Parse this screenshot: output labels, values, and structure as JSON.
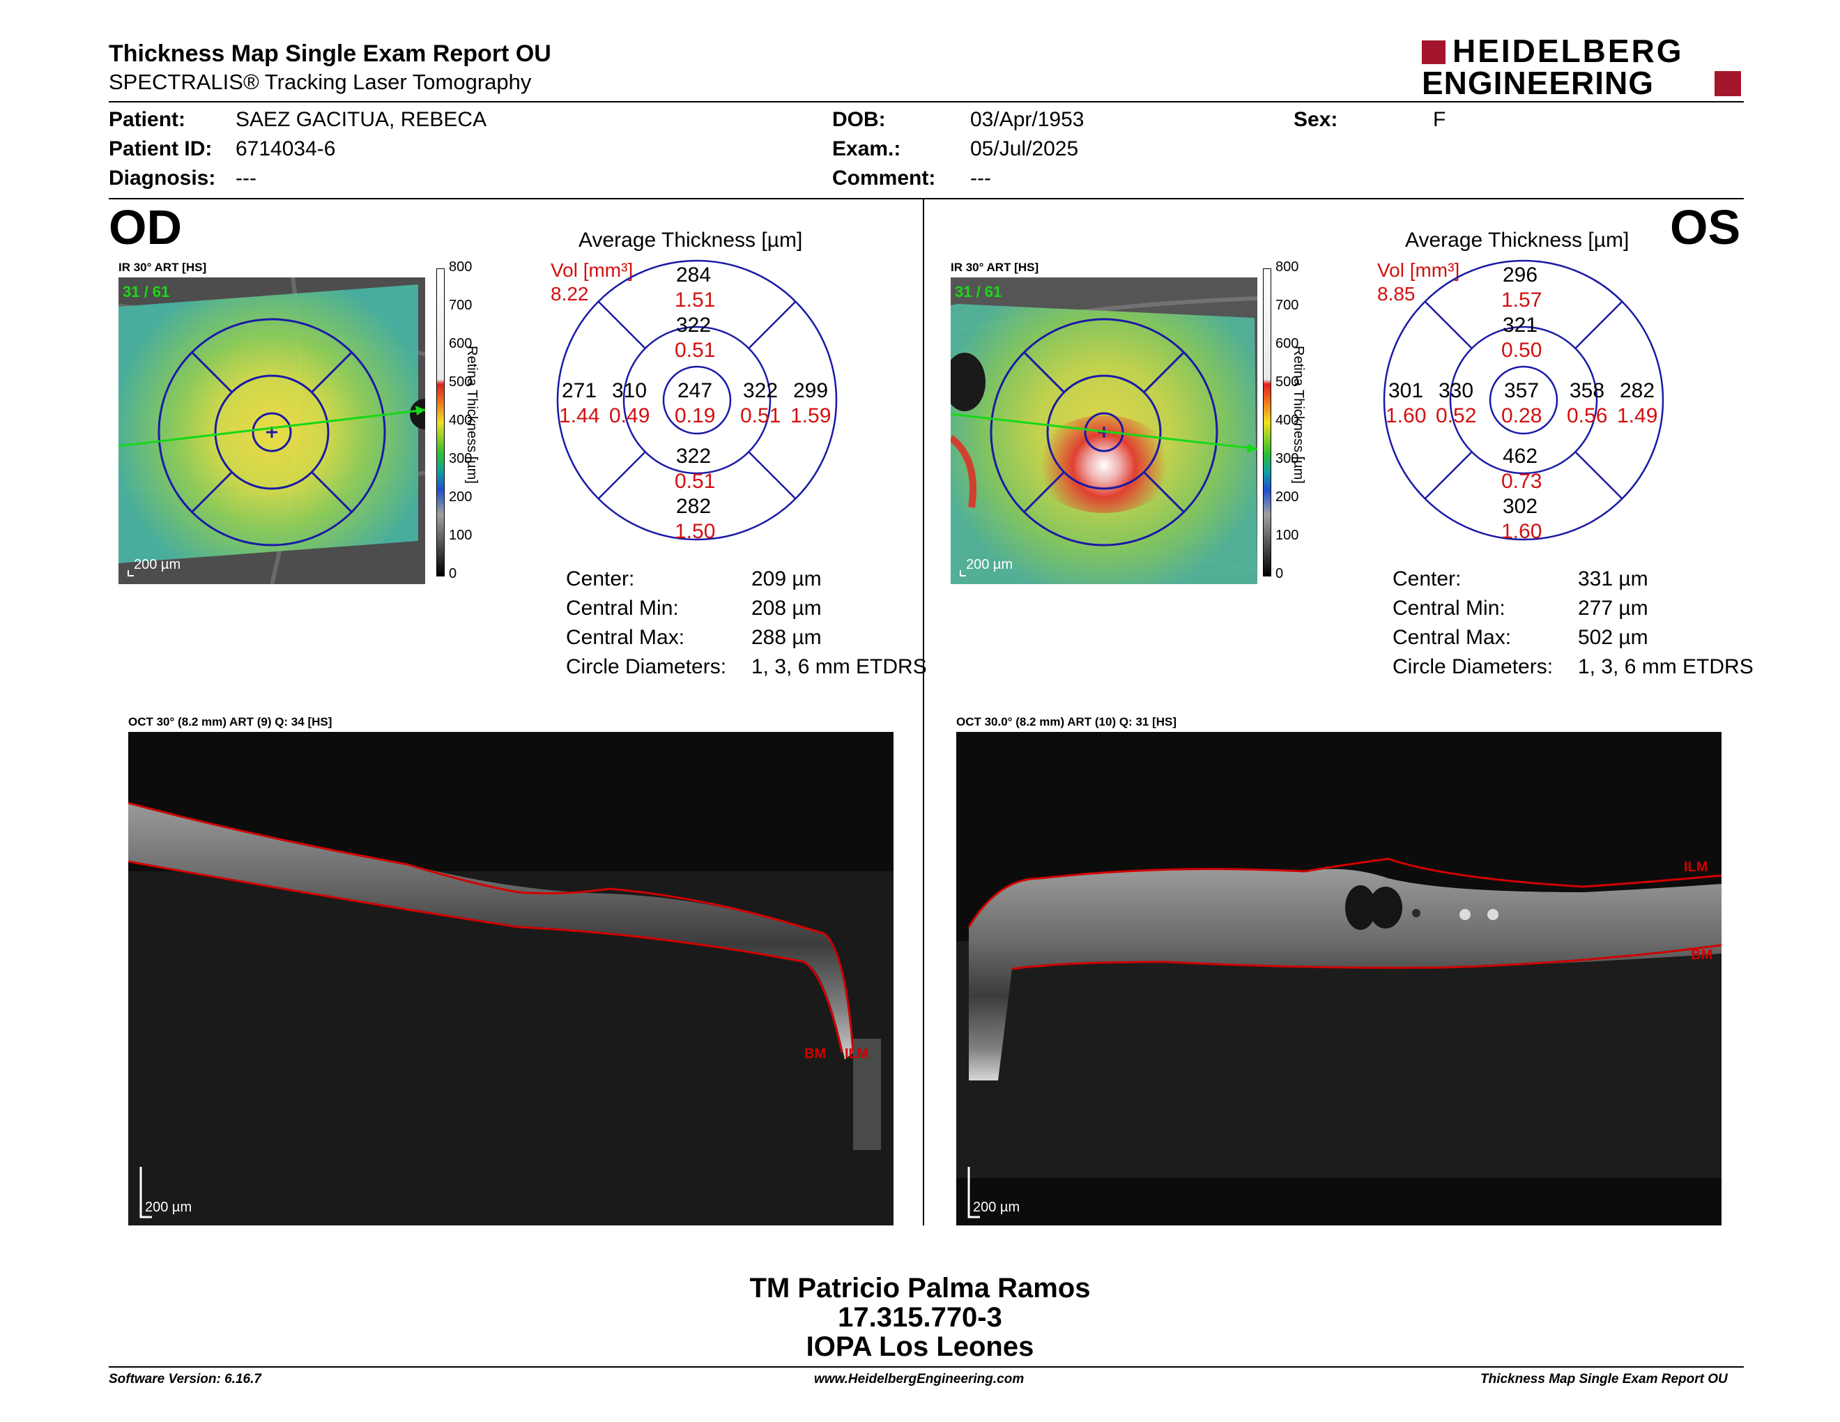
{
  "header": {
    "title": "Thickness Map Single Exam Report OU",
    "subtitle": "SPECTRALIS® Tracking Laser Tomography",
    "logo_line1": "HEIDELBERG",
    "logo_line2": "ENGINEERING"
  },
  "patient": {
    "patient_label": "Patient:",
    "patient_value": "SAEZ GACITUA, REBECA",
    "id_label": "Patient ID:",
    "id_value": "6714034-6",
    "diagnosis_label": "Diagnosis:",
    "diagnosis_value": "---",
    "dob_label": "DOB:",
    "dob_value": "03/Apr/1953",
    "exam_label": "Exam.:",
    "exam_value": "05/Jul/2025",
    "comment_label": "Comment:",
    "comment_value": "---",
    "sex_label": "Sex:",
    "sex_value": "F"
  },
  "colorbar": {
    "ticks": [
      "800",
      "700",
      "600",
      "500",
      "400",
      "300",
      "200",
      "100",
      "0"
    ],
    "label": "Retina Thickness [µm]"
  },
  "od": {
    "eye": "OD",
    "fundus_caption": "IR 30° ART [HS]",
    "frames": "31 / 61",
    "scale": "200 µm",
    "etdrs": {
      "title": "Average Thickness [µm]",
      "vol_label": "Vol [mm³]",
      "vol_value": "8.22",
      "top_outer": "284",
      "top_outer_vol": "1.51",
      "top_inner": "322",
      "top_inner_vol": "0.51",
      "center": "247",
      "center_vol": "0.19",
      "nasal_outer": "271",
      "nasal_outer_vol": "1.44",
      "nasal_inner": "310",
      "nasal_inner_vol": "0.49",
      "temporal_inner": "322",
      "temporal_inner_vol": "0.51",
      "temporal_outer": "299",
      "temporal_outer_vol": "1.59",
      "bottom_inner": "322",
      "bottom_inner_vol": "0.51",
      "bottom_outer": "282",
      "bottom_outer_vol": "1.50"
    },
    "stats": {
      "center_label": "Center:",
      "center_value": "209 µm",
      "min_label": "Central Min:",
      "min_value": "208 µm",
      "max_label": "Central Max:",
      "max_value": "288 µm",
      "diam_label": "Circle Diameters:",
      "diam_value": "1, 3, 6 mm ETDRS"
    },
    "oct_caption": "OCT 30° (8.2 mm) ART (9) Q: 34 [HS]",
    "oct_scale": "200 µm",
    "layer_labels": [
      "BM",
      "ILM"
    ]
  },
  "os": {
    "eye": "OS",
    "fundus_caption": "IR 30° ART [HS]",
    "frames": "31 / 61",
    "scale": "200 µm",
    "etdrs": {
      "title": "Average Thickness [µm]",
      "vol_label": "Vol [mm³]",
      "vol_value": "8.85",
      "top_outer": "296",
      "top_outer_vol": "1.57",
      "top_inner": "321",
      "top_inner_vol": "0.50",
      "center": "357",
      "center_vol": "0.28",
      "nasal_outer": "301",
      "nasal_outer_vol": "1.60",
      "nasal_inner": "330",
      "nasal_inner_vol": "0.52",
      "temporal_inner": "358",
      "temporal_inner_vol": "0.56",
      "temporal_outer": "282",
      "temporal_outer_vol": "1.49",
      "bottom_inner": "462",
      "bottom_inner_vol": "0.73",
      "bottom_outer": "302",
      "bottom_outer_vol": "1.60"
    },
    "stats": {
      "center_label": "Center:",
      "center_value": "331 µm",
      "min_label": "Central Min:",
      "min_value": "277 µm",
      "max_label": "Central Max:",
      "max_value": "502 µm",
      "diam_label": "Circle Diameters:",
      "diam_value": "1, 3, 6 mm ETDRS"
    },
    "oct_caption": "OCT 30.0° (8.2 mm) ART (10) Q: 31 [HS]",
    "oct_scale": "200 µm",
    "layer_labels": [
      "ILM",
      "BM"
    ]
  },
  "signature": {
    "name": "TM Patricio Palma Ramos",
    "rut": "17.315.770-3",
    "institution": "IOPA Los Leones"
  },
  "footer": {
    "software": "Software Version: 6.16.7",
    "website": "www.HeidelbergEngineering.com",
    "report": "Thickness Map Single Exam Report OU"
  },
  "colors": {
    "accent_red": "#a3162c",
    "circle_blue": "#1a1aa6",
    "vol_red": "#d21010",
    "layer_red": "#d00000",
    "green": "#18d818"
  }
}
